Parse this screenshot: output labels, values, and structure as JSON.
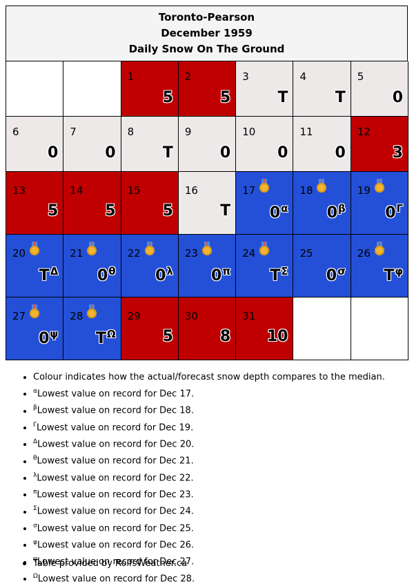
{
  "title": {
    "station": "Toronto-Pearson",
    "month": "December 1959",
    "subtitle": "Daily Snow On The Ground"
  },
  "colors": {
    "above_median": "#c00000",
    "near_median": "#ede9e9",
    "record_low": "#2450d8"
  },
  "days": [
    {
      "day": "1",
      "value": "5",
      "sup": "",
      "status": "above"
    },
    {
      "day": "2",
      "value": "5",
      "sup": "",
      "status": "above"
    },
    {
      "day": "3",
      "value": "T",
      "sup": "",
      "status": "normal"
    },
    {
      "day": "4",
      "value": "T",
      "sup": "",
      "status": "normal"
    },
    {
      "day": "5",
      "value": "0",
      "sup": "",
      "status": "normal"
    },
    {
      "day": "6",
      "value": "0",
      "sup": "",
      "status": "normal"
    },
    {
      "day": "7",
      "value": "0",
      "sup": "",
      "status": "normal"
    },
    {
      "day": "8",
      "value": "T",
      "sup": "",
      "status": "normal"
    },
    {
      "day": "9",
      "value": "0",
      "sup": "",
      "status": "normal"
    },
    {
      "day": "10",
      "value": "0",
      "sup": "",
      "status": "normal"
    },
    {
      "day": "11",
      "value": "0",
      "sup": "",
      "status": "normal"
    },
    {
      "day": "12",
      "value": "3",
      "sup": "",
      "status": "above"
    },
    {
      "day": "13",
      "value": "5",
      "sup": "",
      "status": "above"
    },
    {
      "day": "14",
      "value": "5",
      "sup": "",
      "status": "above"
    },
    {
      "day": "15",
      "value": "5",
      "sup": "",
      "status": "above"
    },
    {
      "day": "16",
      "value": "T",
      "sup": "",
      "status": "normal"
    },
    {
      "day": "17",
      "value": "0",
      "sup": "α",
      "status": "record",
      "medal": true
    },
    {
      "day": "18",
      "value": "0",
      "sup": "β",
      "status": "record",
      "medal": true
    },
    {
      "day": "19",
      "value": "0",
      "sup": "Γ",
      "status": "record",
      "medal": true
    },
    {
      "day": "20",
      "value": "T",
      "sup": "Δ",
      "status": "record",
      "medal": true
    },
    {
      "day": "21",
      "value": "0",
      "sup": "θ",
      "status": "record",
      "medal": true
    },
    {
      "day": "22",
      "value": "0",
      "sup": "λ",
      "status": "record",
      "medal": true
    },
    {
      "day": "23",
      "value": "0",
      "sup": "π",
      "status": "record",
      "medal": true
    },
    {
      "day": "24",
      "value": "T",
      "sup": "Σ",
      "status": "record",
      "medal": true
    },
    {
      "day": "25",
      "value": "0",
      "sup": "σ",
      "status": "record",
      "medal": false
    },
    {
      "day": "26",
      "value": "T",
      "sup": "φ",
      "status": "record",
      "medal": true
    },
    {
      "day": "27",
      "value": "0",
      "sup": "ψ",
      "status": "record",
      "medal": true
    },
    {
      "day": "28",
      "value": "T",
      "sup": "Ω",
      "status": "record",
      "medal": true
    },
    {
      "day": "29",
      "value": "5",
      "sup": "",
      "status": "above"
    },
    {
      "day": "30",
      "value": "8",
      "sup": "",
      "status": "above"
    },
    {
      "day": "31",
      "value": "10",
      "sup": "",
      "status": "above"
    }
  ],
  "notes": [
    {
      "sup": "",
      "text": "Colour indicates how the actual/forecast snow depth compares to the median."
    },
    {
      "sup": "α",
      "text": "Lowest value on record for Dec 17."
    },
    {
      "sup": "β",
      "text": "Lowest value on record for Dec 18."
    },
    {
      "sup": "Γ",
      "text": "Lowest value on record for Dec 19."
    },
    {
      "sup": "Δ",
      "text": "Lowest value on record for Dec 20."
    },
    {
      "sup": "θ",
      "text": "Lowest value on record for Dec 21."
    },
    {
      "sup": "λ",
      "text": "Lowest value on record for Dec 22."
    },
    {
      "sup": "π",
      "text": "Lowest value on record for Dec 23."
    },
    {
      "sup": "Σ",
      "text": "Lowest value on record for Dec 24."
    },
    {
      "sup": "σ",
      "text": "Lowest value on record for Dec 25."
    },
    {
      "sup": "φ",
      "text": "Lowest value on record for Dec 26."
    },
    {
      "sup": "ψ",
      "text": "Lowest value on record for Dec 27."
    },
    {
      "sup": "Ω",
      "text": "Lowest value on record for Dec 28."
    }
  ],
  "source": "Table provided by RolfsWeather.ca"
}
